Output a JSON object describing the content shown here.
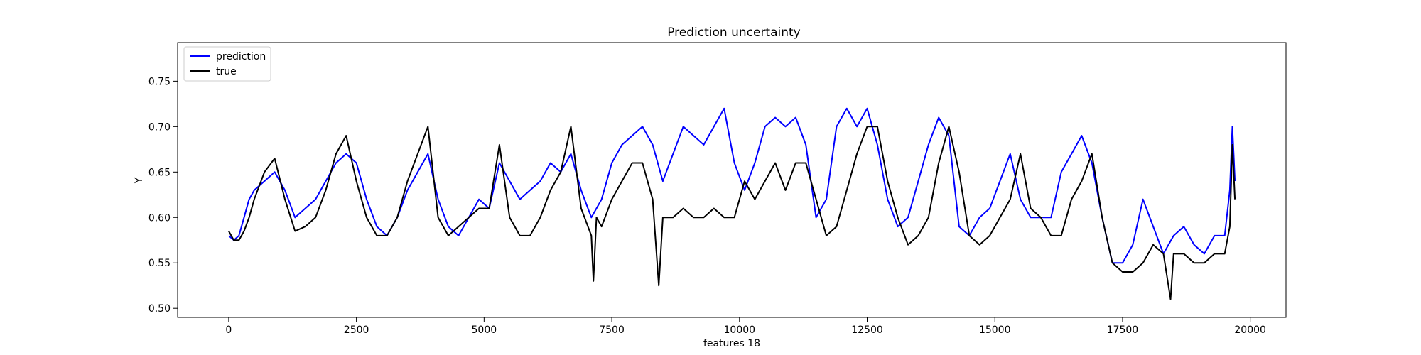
{
  "chart_data": {
    "type": "line",
    "title": "Prediction uncertainty",
    "xlabel": "features 18",
    "ylabel": "Y",
    "xlim": [
      -1000,
      20700
    ],
    "ylim": [
      0.49,
      0.7925
    ],
    "x_ticks": [
      0,
      2500,
      5000,
      7500,
      10000,
      12500,
      15000,
      17500,
      20000
    ],
    "x_tick_labels": [
      "0",
      "2500",
      "5000",
      "7500",
      "10000",
      "12500",
      "15000",
      "17500",
      "20000"
    ],
    "y_ticks": [
      0.5,
      0.55,
      0.6,
      0.65,
      0.7,
      0.75
    ],
    "y_tick_labels": [
      "0.50",
      "0.55",
      "0.60",
      "0.65",
      "0.70",
      "0.75"
    ],
    "grid": false,
    "legend": {
      "placement": "top-left",
      "entries": [
        "prediction",
        "true"
      ]
    },
    "series": [
      {
        "name": "prediction",
        "color": "#0000ff",
        "x": [
          0,
          100,
          200,
          300,
          400,
          500,
          700,
          900,
          1100,
          1300,
          1500,
          1700,
          1900,
          2100,
          2300,
          2500,
          2700,
          2900,
          3100,
          3300,
          3500,
          3700,
          3900,
          4100,
          4300,
          4500,
          4700,
          4900,
          5100,
          5300,
          5500,
          5700,
          5900,
          6100,
          6300,
          6500,
          6700,
          6900,
          7100,
          7300,
          7500,
          7700,
          7900,
          8100,
          8300,
          8500,
          8700,
          8900,
          9100,
          9300,
          9500,
          9700,
          9900,
          10100,
          10300,
          10500,
          10700,
          10900,
          11100,
          11300,
          11500,
          11700,
          11900,
          12100,
          12300,
          12500,
          12700,
          12900,
          13100,
          13300,
          13500,
          13700,
          13900,
          14100,
          14300,
          14500,
          14700,
          14900,
          15100,
          15300,
          15500,
          15700,
          15900,
          16100,
          16300,
          16500,
          16700,
          16900,
          17100,
          17300,
          17500,
          17700,
          17900,
          18100,
          18300,
          18500,
          18700,
          18900,
          19100,
          19300,
          19500,
          19600,
          19650,
          19700
        ],
        "y": [
          0.58,
          0.575,
          0.58,
          0.6,
          0.62,
          0.63,
          0.64,
          0.65,
          0.63,
          0.6,
          0.61,
          0.62,
          0.64,
          0.66,
          0.67,
          0.66,
          0.62,
          0.59,
          0.58,
          0.6,
          0.63,
          0.65,
          0.67,
          0.62,
          0.59,
          0.58,
          0.6,
          0.62,
          0.61,
          0.66,
          0.64,
          0.62,
          0.63,
          0.64,
          0.66,
          0.65,
          0.67,
          0.63,
          0.6,
          0.62,
          0.66,
          0.68,
          0.69,
          0.7,
          0.68,
          0.64,
          0.67,
          0.7,
          0.69,
          0.68,
          0.7,
          0.72,
          0.66,
          0.63,
          0.66,
          0.7,
          0.71,
          0.7,
          0.71,
          0.68,
          0.6,
          0.62,
          0.7,
          0.72,
          0.7,
          0.72,
          0.68,
          0.62,
          0.59,
          0.6,
          0.64,
          0.68,
          0.71,
          0.69,
          0.59,
          0.58,
          0.6,
          0.61,
          0.64,
          0.67,
          0.62,
          0.6,
          0.6,
          0.6,
          0.65,
          0.67,
          0.69,
          0.66,
          0.6,
          0.55,
          0.55,
          0.57,
          0.62,
          0.59,
          0.56,
          0.58,
          0.59,
          0.57,
          0.56,
          0.58,
          0.58,
          0.63,
          0.7,
          0.64
        ]
      },
      {
        "name": "true",
        "color": "#000000",
        "x": [
          0,
          100,
          200,
          300,
          400,
          500,
          700,
          900,
          1100,
          1300,
          1500,
          1700,
          1900,
          2100,
          2300,
          2500,
          2700,
          2900,
          3100,
          3300,
          3500,
          3700,
          3900,
          4100,
          4300,
          4500,
          4700,
          4900,
          5100,
          5300,
          5500,
          5700,
          5900,
          6100,
          6300,
          6500,
          6700,
          6900,
          7100,
          7140,
          7200,
          7300,
          7500,
          7700,
          7900,
          8100,
          8300,
          8420,
          8500,
          8700,
          8900,
          9100,
          9300,
          9500,
          9700,
          9900,
          10100,
          10300,
          10500,
          10700,
          10900,
          11100,
          11300,
          11500,
          11700,
          11900,
          12100,
          12300,
          12500,
          12700,
          12900,
          13100,
          13300,
          13500,
          13700,
          13900,
          14100,
          14300,
          14500,
          14700,
          14900,
          15100,
          15300,
          15500,
          15700,
          15900,
          16100,
          16300,
          16500,
          16700,
          16900,
          17100,
          17300,
          17500,
          17700,
          17900,
          18100,
          18300,
          18440,
          18500,
          18700,
          18900,
          19100,
          19300,
          19500,
          19600,
          19650,
          19700
        ],
        "y": [
          0.585,
          0.575,
          0.575,
          0.585,
          0.6,
          0.62,
          0.65,
          0.665,
          0.62,
          0.585,
          0.59,
          0.6,
          0.63,
          0.67,
          0.69,
          0.64,
          0.6,
          0.58,
          0.58,
          0.6,
          0.64,
          0.67,
          0.7,
          0.6,
          0.58,
          0.59,
          0.6,
          0.61,
          0.61,
          0.68,
          0.6,
          0.58,
          0.58,
          0.6,
          0.63,
          0.65,
          0.7,
          0.61,
          0.58,
          0.53,
          0.6,
          0.59,
          0.62,
          0.64,
          0.66,
          0.66,
          0.62,
          0.525,
          0.6,
          0.6,
          0.61,
          0.6,
          0.6,
          0.61,
          0.6,
          0.6,
          0.64,
          0.62,
          0.64,
          0.66,
          0.63,
          0.66,
          0.66,
          0.62,
          0.58,
          0.59,
          0.63,
          0.67,
          0.7,
          0.7,
          0.64,
          0.6,
          0.57,
          0.58,
          0.6,
          0.66,
          0.7,
          0.65,
          0.58,
          0.57,
          0.58,
          0.6,
          0.62,
          0.67,
          0.61,
          0.6,
          0.58,
          0.58,
          0.62,
          0.64,
          0.67,
          0.6,
          0.55,
          0.54,
          0.54,
          0.55,
          0.57,
          0.56,
          0.51,
          0.56,
          0.56,
          0.55,
          0.55,
          0.56,
          0.56,
          0.59,
          0.68,
          0.62
        ]
      }
    ]
  }
}
